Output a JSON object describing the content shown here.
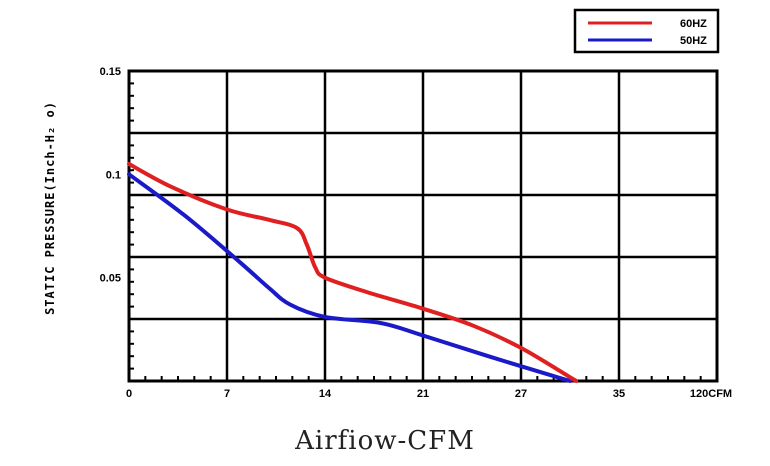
{
  "chart_data": {
    "type": "line",
    "title": "",
    "xlabel": "Airfiow-CFM",
    "ylabel": "STATIC PRESSURE(Inch-H₂ o)",
    "x_tick_labels": [
      "0",
      "7",
      "14",
      "21",
      "27",
      "35",
      "120CFM"
    ],
    "y_tick_labels": [
      "0.15",
      "0.1",
      "0.05"
    ],
    "y_tick_values": [
      0.15,
      0.1,
      0.05
    ],
    "ylim": [
      0,
      0.15
    ],
    "grid": true,
    "legend_position": "top-right",
    "series": [
      {
        "name": "60HZ",
        "color": "#e02020",
        "points": [
          [
            0,
            0.105
          ],
          [
            3,
            0.094
          ],
          [
            7,
            0.083
          ],
          [
            10,
            0.078
          ],
          [
            12,
            0.074
          ],
          [
            12.7,
            0.066
          ],
          [
            13.3,
            0.055
          ],
          [
            14,
            0.05
          ],
          [
            17,
            0.043
          ],
          [
            21,
            0.035
          ],
          [
            24,
            0.027
          ],
          [
            27,
            0.016
          ],
          [
            31.5,
            0
          ]
        ]
      },
      {
        "name": "50HZ",
        "color": "#1a1ac8",
        "points": [
          [
            0,
            0.1
          ],
          [
            4,
            0.08
          ],
          [
            8,
            0.057
          ],
          [
            10,
            0.045
          ],
          [
            11.5,
            0.037
          ],
          [
            14,
            0.031
          ],
          [
            18,
            0.028
          ],
          [
            21,
            0.022
          ],
          [
            25,
            0.012
          ],
          [
            31,
            0
          ]
        ]
      }
    ]
  }
}
